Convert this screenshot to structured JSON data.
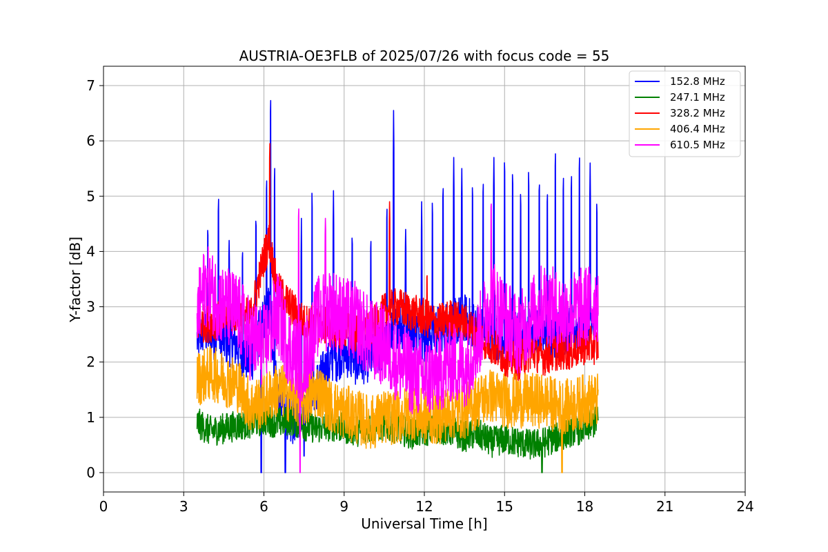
{
  "chart_data": {
    "type": "line",
    "title": "AUSTRIA-OE3FLB of 2025/07/26 with focus code = 55",
    "xlabel": "Universal Time [h]",
    "ylabel": "Y-factor [dB]",
    "xlim": [
      0,
      24
    ],
    "ylim": [
      -0.35,
      7.35
    ],
    "xticks": [
      0,
      3,
      6,
      9,
      12,
      15,
      18,
      21,
      24
    ],
    "yticks": [
      0,
      1,
      2,
      3,
      4,
      5,
      6,
      7
    ],
    "grid": true,
    "legend_position": "top-right",
    "series": [
      {
        "name": "152.8 MHz",
        "color": "#0000ff",
        "x": [
          3.5,
          3.75,
          4,
          4.5,
          5,
          5.5,
          6,
          6.2,
          6.5,
          7,
          7.5,
          8,
          8.5,
          9,
          9.5,
          10,
          10.5,
          10.8,
          11,
          11.5,
          12,
          12.5,
          13,
          13.5,
          14,
          14.5,
          15,
          15.5,
          16,
          16.5,
          17,
          17.5,
          18,
          18.5
        ],
        "base": [
          2.4,
          2.6,
          2.5,
          2.4,
          2.3,
          2.0,
          2.8,
          3.0,
          1.5,
          0.9,
          1.2,
          1.6,
          2.0,
          2.2,
          2.0,
          2.1,
          2.3,
          2.5,
          2.7,
          2.6,
          2.4,
          2.6,
          2.7,
          2.8,
          2.6,
          2.5,
          2.4,
          2.5,
          2.6,
          2.5,
          2.5,
          2.6,
          2.6,
          2.6
        ],
        "spikes": [
          {
            "x": 3.9,
            "y": 4.5
          },
          {
            "x": 4.3,
            "y": 5.1
          },
          {
            "x": 4.7,
            "y": 4.2
          },
          {
            "x": 5.2,
            "y": 4.1
          },
          {
            "x": 5.7,
            "y": 4.7
          },
          {
            "x": 6.1,
            "y": 5.4
          },
          {
            "x": 6.25,
            "y": 7.0
          },
          {
            "x": 6.4,
            "y": 5.7
          },
          {
            "x": 6.8,
            "y": 4.9
          },
          {
            "x": 7.4,
            "y": 4.6
          },
          {
            "x": 7.8,
            "y": 5.3
          },
          {
            "x": 8.6,
            "y": 5.1
          },
          {
            "x": 9.3,
            "y": 4.4
          },
          {
            "x": 10.0,
            "y": 4.3
          },
          {
            "x": 10.6,
            "y": 4.9
          },
          {
            "x": 10.85,
            "y": 6.55
          },
          {
            "x": 11.3,
            "y": 4.4
          },
          {
            "x": 11.9,
            "y": 4.9
          },
          {
            "x": 12.3,
            "y": 5.0
          },
          {
            "x": 12.7,
            "y": 5.3
          },
          {
            "x": 13.1,
            "y": 5.7
          },
          {
            "x": 13.4,
            "y": 5.5
          },
          {
            "x": 13.8,
            "y": 5.3
          },
          {
            "x": 14.2,
            "y": 5.4
          },
          {
            "x": 14.6,
            "y": 5.7
          },
          {
            "x": 15.0,
            "y": 5.8
          },
          {
            "x": 15.3,
            "y": 5.6
          },
          {
            "x": 15.6,
            "y": 5.2
          },
          {
            "x": 15.9,
            "y": 5.6
          },
          {
            "x": 16.3,
            "y": 5.4
          },
          {
            "x": 16.6,
            "y": 5.2
          },
          {
            "x": 16.9,
            "y": 6.0
          },
          {
            "x": 17.2,
            "y": 5.5
          },
          {
            "x": 17.5,
            "y": 5.5
          },
          {
            "x": 17.8,
            "y": 5.9
          },
          {
            "x": 18.2,
            "y": 5.6
          },
          {
            "x": 18.45,
            "y": 5.0
          }
        ],
        "dips": [
          {
            "x": 5.9,
            "y": 0.0
          },
          {
            "x": 6.8,
            "y": 0.0
          },
          {
            "x": 7.5,
            "y": 0.3
          }
        ]
      },
      {
        "name": "247.1 MHz",
        "color": "#008000",
        "x": [
          3.5,
          4,
          4.5,
          5,
          5.5,
          6,
          6.5,
          7,
          7.5,
          8,
          8.5,
          9,
          9.5,
          10,
          10.5,
          11,
          11.5,
          12,
          12.5,
          13,
          13.5,
          14,
          14.5,
          15,
          15.5,
          16,
          16.5,
          17,
          17.5,
          18,
          18.5
        ],
        "base": [
          0.9,
          0.75,
          0.8,
          0.85,
          0.9,
          0.95,
          0.9,
          0.95,
          0.85,
          0.8,
          0.85,
          0.8,
          0.75,
          0.8,
          0.85,
          0.8,
          0.7,
          0.75,
          0.8,
          0.75,
          0.65,
          0.7,
          0.55,
          0.6,
          0.55,
          0.5,
          0.55,
          0.65,
          0.75,
          0.8,
          0.95
        ],
        "spikes": [],
        "dips": [
          {
            "x": 16.4,
            "y": 0.0
          }
        ]
      },
      {
        "name": "328.2 MHz",
        "color": "#ff0000",
        "x": [
          3.5,
          4,
          4.5,
          5,
          5.5,
          6,
          6.2,
          6.5,
          7,
          7.5,
          8,
          8.5,
          9,
          9.5,
          10,
          10.5,
          11,
          11.5,
          12,
          12.5,
          13,
          13.5,
          14,
          14.5,
          15,
          15.5,
          16,
          16.5,
          17,
          17.5,
          18,
          18.5
        ],
        "base": [
          2.7,
          2.7,
          2.8,
          2.9,
          2.8,
          3.9,
          4.2,
          3.3,
          3.0,
          2.7,
          2.7,
          2.6,
          2.6,
          2.5,
          2.6,
          2.9,
          3.0,
          2.9,
          2.8,
          2.7,
          2.8,
          2.7,
          2.5,
          2.3,
          2.1,
          2.0,
          2.2,
          2.1,
          2.2,
          2.2,
          2.3,
          2.3
        ],
        "spikes": [
          {
            "x": 6.22,
            "y": 6.0
          },
          {
            "x": 10.7,
            "y": 4.9
          },
          {
            "x": 12.1,
            "y": 3.6
          }
        ],
        "dips": []
      },
      {
        "name": "406.4 MHz",
        "color": "#ffa500",
        "x": [
          3.5,
          4,
          4.5,
          5,
          5.5,
          6,
          6.5,
          7,
          7.5,
          8,
          8.5,
          9,
          9.5,
          10,
          10.5,
          11,
          11.5,
          12,
          12.5,
          13,
          13.5,
          14,
          14.5,
          15,
          15.5,
          16,
          16.5,
          17,
          17.5,
          18,
          18.5
        ],
        "base": [
          1.7,
          1.8,
          1.7,
          1.6,
          1.2,
          1.3,
          1.5,
          1.4,
          1.3,
          1.5,
          1.2,
          1.1,
          1.0,
          0.9,
          1.0,
          1.0,
          1.1,
          1.0,
          1.0,
          1.1,
          1.1,
          1.3,
          1.4,
          1.3,
          1.3,
          1.3,
          1.3,
          1.2,
          1.2,
          1.3,
          1.3
        ],
        "spikes": [],
        "dips": [
          {
            "x": 17.15,
            "y": 0.0
          }
        ]
      },
      {
        "name": "610.5 MHz",
        "color": "#ff00ff",
        "x": [
          3.5,
          3.8,
          4,
          4.5,
          5,
          5.5,
          6,
          6.5,
          7,
          7.5,
          8,
          8.5,
          9,
          9.5,
          10,
          10.5,
          11,
          11.5,
          12,
          12.5,
          13,
          13.5,
          14,
          14.5,
          15,
          15.5,
          16,
          16.5,
          17,
          17.5,
          18,
          18.5
        ],
        "base": [
          2.8,
          3.4,
          3.3,
          3.0,
          2.9,
          2.4,
          2.3,
          2.9,
          2.2,
          2.0,
          2.8,
          3.0,
          2.8,
          2.7,
          2.4,
          2.3,
          2.0,
          1.8,
          1.7,
          1.8,
          2.0,
          1.9,
          2.4,
          3.2,
          2.8,
          2.5,
          2.8,
          3.1,
          2.9,
          2.9,
          3.0,
          3.1
        ],
        "spikes": [
          {
            "x": 7.3,
            "y": 4.9
          },
          {
            "x": 8.3,
            "y": 4.6
          },
          {
            "x": 14.5,
            "y": 4.95
          }
        ],
        "dips": [
          {
            "x": 7.35,
            "y": 0.0
          }
        ]
      }
    ]
  }
}
